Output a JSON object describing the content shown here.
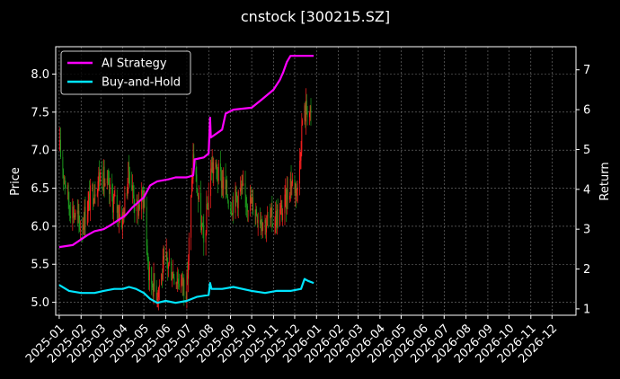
{
  "chart_data": {
    "type": "line",
    "title": "cnstock [300215.SZ]",
    "ylabel_left": "Price",
    "ylabel_right": "Return",
    "grid": true,
    "legend_position": "top-left",
    "colors": {
      "background": "#000000",
      "axes": "#ffffff",
      "grid": "#7a7a7a",
      "candle_up": "#ff2020",
      "candle_down": "#1e9e1e",
      "ai_strategy": "#ff00ff",
      "buy_and_hold": "#00e5ff"
    },
    "x_axis": {
      "type": "date",
      "range": [
        "2024-12-27",
        "2027-01-04"
      ],
      "tick_labels": [
        "2025-01",
        "2025-02",
        "2025-03",
        "2025-04",
        "2025-05",
        "2025-06",
        "2025-07",
        "2025-08",
        "2025-09",
        "2025-10",
        "2025-11",
        "2025-12",
        "2026-01",
        "2026-02",
        "2026-03",
        "2026-04",
        "2026-05",
        "2026-06",
        "2026-07",
        "2026-08",
        "2026-09",
        "2026-10",
        "2026-11",
        "2026-12"
      ]
    },
    "y_left": {
      "label": "Price",
      "range": [
        4.83,
        8.36
      ],
      "ticks": [
        "5.0",
        "5.5",
        "6.0",
        "6.5",
        "7.0",
        "7.5",
        "8.0"
      ]
    },
    "y_right": {
      "label": "Return",
      "range": [
        0.84,
        7.58
      ],
      "ticks": [
        "1",
        "2",
        "3",
        "4",
        "5",
        "6",
        "7"
      ]
    },
    "price": {
      "name": "Price (candlestick)",
      "x": [
        "2025-01-02",
        "2025-01-15",
        "2025-02-01",
        "2025-02-15",
        "2025-03-01",
        "2025-03-15",
        "2025-04-01",
        "2025-04-10",
        "2025-04-20",
        "2025-05-01",
        "2025-05-08",
        "2025-05-20",
        "2025-06-01",
        "2025-06-15",
        "2025-07-01",
        "2025-07-10",
        "2025-07-25",
        "2025-08-05",
        "2025-08-20",
        "2025-09-01",
        "2025-09-15",
        "2025-10-01",
        "2025-10-20",
        "2025-11-01",
        "2025-11-15",
        "2025-11-25",
        "2025-12-05",
        "2025-12-12",
        "2025-12-20",
        "2025-12-25"
      ],
      "values": [
        7.0,
        6.3,
        6.0,
        6.4,
        6.7,
        6.4,
        6.1,
        6.75,
        6.2,
        6.4,
        5.35,
        5.15,
        5.55,
        5.35,
        5.2,
        6.9,
        5.75,
        6.8,
        6.6,
        6.3,
        6.45,
        6.3,
        6.05,
        6.1,
        6.2,
        6.6,
        6.5,
        7.4,
        7.6,
        7.35
      ]
    },
    "series": [
      {
        "name": "AI Strategy",
        "x": [
          "2025-01-01",
          "2025-01-20",
          "2025-02-10",
          "2025-02-20",
          "2025-03-05",
          "2025-03-15",
          "2025-04-05",
          "2025-04-15",
          "2025-05-01",
          "2025-05-10",
          "2025-05-20",
          "2025-06-05",
          "2025-06-15",
          "2025-07-01",
          "2025-07-10",
          "2025-07-12",
          "2025-07-25",
          "2025-08-01",
          "2025-08-03",
          "2025-08-04",
          "2025-08-20",
          "2025-08-25",
          "2025-09-05",
          "2025-10-01",
          "2025-10-15",
          "2025-11-01",
          "2025-11-10",
          "2025-11-15",
          "2025-11-20",
          "2025-11-25",
          "2025-12-28"
        ],
        "values": [
          2.55,
          2.6,
          2.85,
          2.95,
          3.0,
          3.1,
          3.35,
          3.55,
          3.8,
          4.1,
          4.2,
          4.25,
          4.3,
          4.3,
          4.35,
          4.75,
          4.8,
          4.9,
          5.8,
          5.3,
          5.5,
          5.9,
          6.0,
          6.05,
          6.25,
          6.5,
          6.75,
          6.95,
          7.2,
          7.35,
          7.35
        ]
      },
      {
        "name": "Buy-and-Hold",
        "x": [
          "2025-01-01",
          "2025-01-15",
          "2025-02-01",
          "2025-02-20",
          "2025-03-05",
          "2025-03-20",
          "2025-04-01",
          "2025-04-10",
          "2025-04-20",
          "2025-05-01",
          "2025-05-10",
          "2025-05-20",
          "2025-06-01",
          "2025-06-15",
          "2025-07-01",
          "2025-07-15",
          "2025-08-01",
          "2025-08-03",
          "2025-08-05",
          "2025-08-20",
          "2025-09-05",
          "2025-10-01",
          "2025-10-20",
          "2025-11-05",
          "2025-11-25",
          "2025-12-10",
          "2025-12-15",
          "2025-12-20",
          "2025-12-28"
        ],
        "values": [
          1.6,
          1.45,
          1.4,
          1.4,
          1.45,
          1.5,
          1.5,
          1.55,
          1.5,
          1.4,
          1.25,
          1.15,
          1.2,
          1.15,
          1.2,
          1.3,
          1.35,
          1.65,
          1.5,
          1.5,
          1.55,
          1.45,
          1.4,
          1.45,
          1.45,
          1.5,
          1.75,
          1.7,
          1.65
        ]
      }
    ]
  }
}
